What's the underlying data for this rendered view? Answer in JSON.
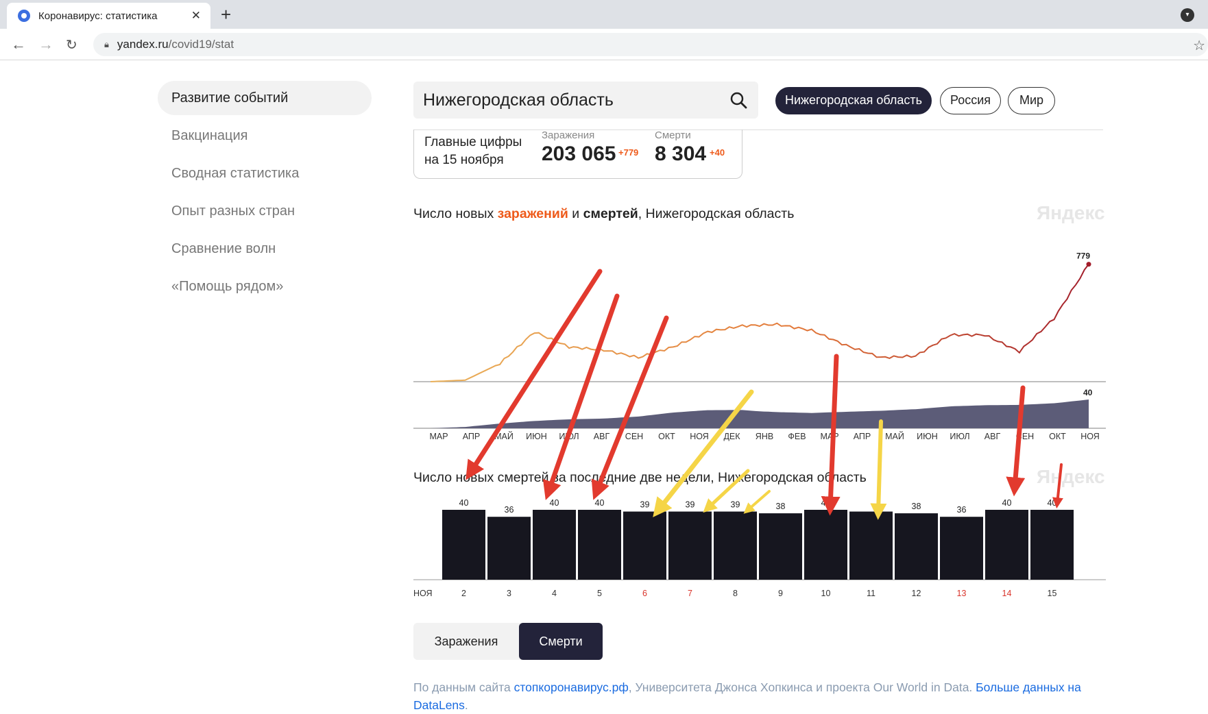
{
  "browser": {
    "tab_title": "Коронавирус: статистика",
    "tab_close": "✕",
    "new_tab": "+",
    "url_domain": "yandex.ru",
    "url_path": "/covid19/stat"
  },
  "sidebar": {
    "items": [
      {
        "label": "Развитие событий",
        "active": true
      },
      {
        "label": "Вакцинация"
      },
      {
        "label": "Сводная статистика"
      },
      {
        "label": "Опыт разных стран"
      },
      {
        "label": "Сравнение волн"
      },
      {
        "label": "«Помощь рядом»"
      }
    ]
  },
  "search": {
    "value": "Нижегородская область",
    "icon": "search-icon"
  },
  "region_pills": [
    "Нижегородская область",
    "Россия",
    "Мир"
  ],
  "summary": {
    "label": "Главные цифры на 15 ноября",
    "infections": {
      "name": "Заражения",
      "value": "203 065",
      "delta": "+779"
    },
    "deaths": {
      "name": "Смерти",
      "value": "8 304",
      "delta": "+40"
    }
  },
  "watermark": "Яндекс",
  "chart1": {
    "heading_pre": "Число новых ",
    "heading_inf": "заражений",
    "heading_mid": " и ",
    "heading_dth": "смертей",
    "heading_post": ", Нижегородская область"
  },
  "chart2": {
    "heading": "Число новых смертей за последние две недели, Нижегородская область"
  },
  "chart_data": [
    {
      "type": "line",
      "title": "Число новых заражений и смертей, Нижегородская область",
      "x_ticks": [
        "МАР",
        "АПР",
        "МАЙ",
        "ИЮН",
        "ИЮЛ",
        "АВГ",
        "СЕН",
        "ОКТ",
        "НОЯ",
        "ДЕК",
        "ЯНВ",
        "ФЕВ",
        "МАР",
        "АПР",
        "МАЙ",
        "ИЮН",
        "ИЮЛ",
        "АВГ",
        "СЕН",
        "ОКТ",
        "НОЯ"
      ],
      "series": [
        {
          "name": "заражений",
          "color": "#e9a04a",
          "end_color": "#a21d2a",
          "values": [
            0,
            10,
            120,
            330,
            230,
            210,
            160,
            230,
            330,
            370,
            380,
            340,
            240,
            160,
            170,
            310,
            310,
            200,
            420,
            779
          ],
          "last_label": "779"
        },
        {
          "name": "смертей",
          "color": "#3a3a55",
          "values": [
            0,
            1,
            5,
            8,
            10,
            11,
            14,
            20,
            24,
            25,
            22,
            20,
            21,
            22,
            24,
            28,
            30,
            31,
            34,
            40
          ],
          "last_label": "40"
        }
      ]
    },
    {
      "type": "bar",
      "title": "Число новых смертей за последние две недели, Нижегородская область",
      "month_label": "НОЯ",
      "categories": [
        "2",
        "3",
        "4",
        "5",
        "6",
        "7",
        "8",
        "9",
        "10",
        "11",
        "12",
        "13",
        "14",
        "15"
      ],
      "values": [
        40,
        36,
        40,
        40,
        39,
        39,
        39,
        38,
        40,
        39,
        38,
        36,
        40,
        40
      ],
      "holidays": [
        "6",
        "7",
        "13",
        "14"
      ],
      "value_labels": [
        "40",
        "36",
        "40",
        "40",
        "39",
        "39",
        "39",
        "38",
        "40",
        "",
        "38",
        "36",
        "40",
        "40"
      ],
      "bar_color": "#16161f",
      "holiday_color": "#d9342b"
    }
  ],
  "toggle": {
    "left": "Заражения",
    "right": "Смерти"
  },
  "footer": {
    "pre": "По данным сайта ",
    "link1": "стопкоронавирус.рф",
    "mid": ", Университета Джонса Хопкинса и проекта Our World in Data. ",
    "link2": "Больше данных на DataLens",
    "post": "."
  },
  "annotation_colors": {
    "red": "#e23a2e",
    "yellow": "#f5d547"
  }
}
